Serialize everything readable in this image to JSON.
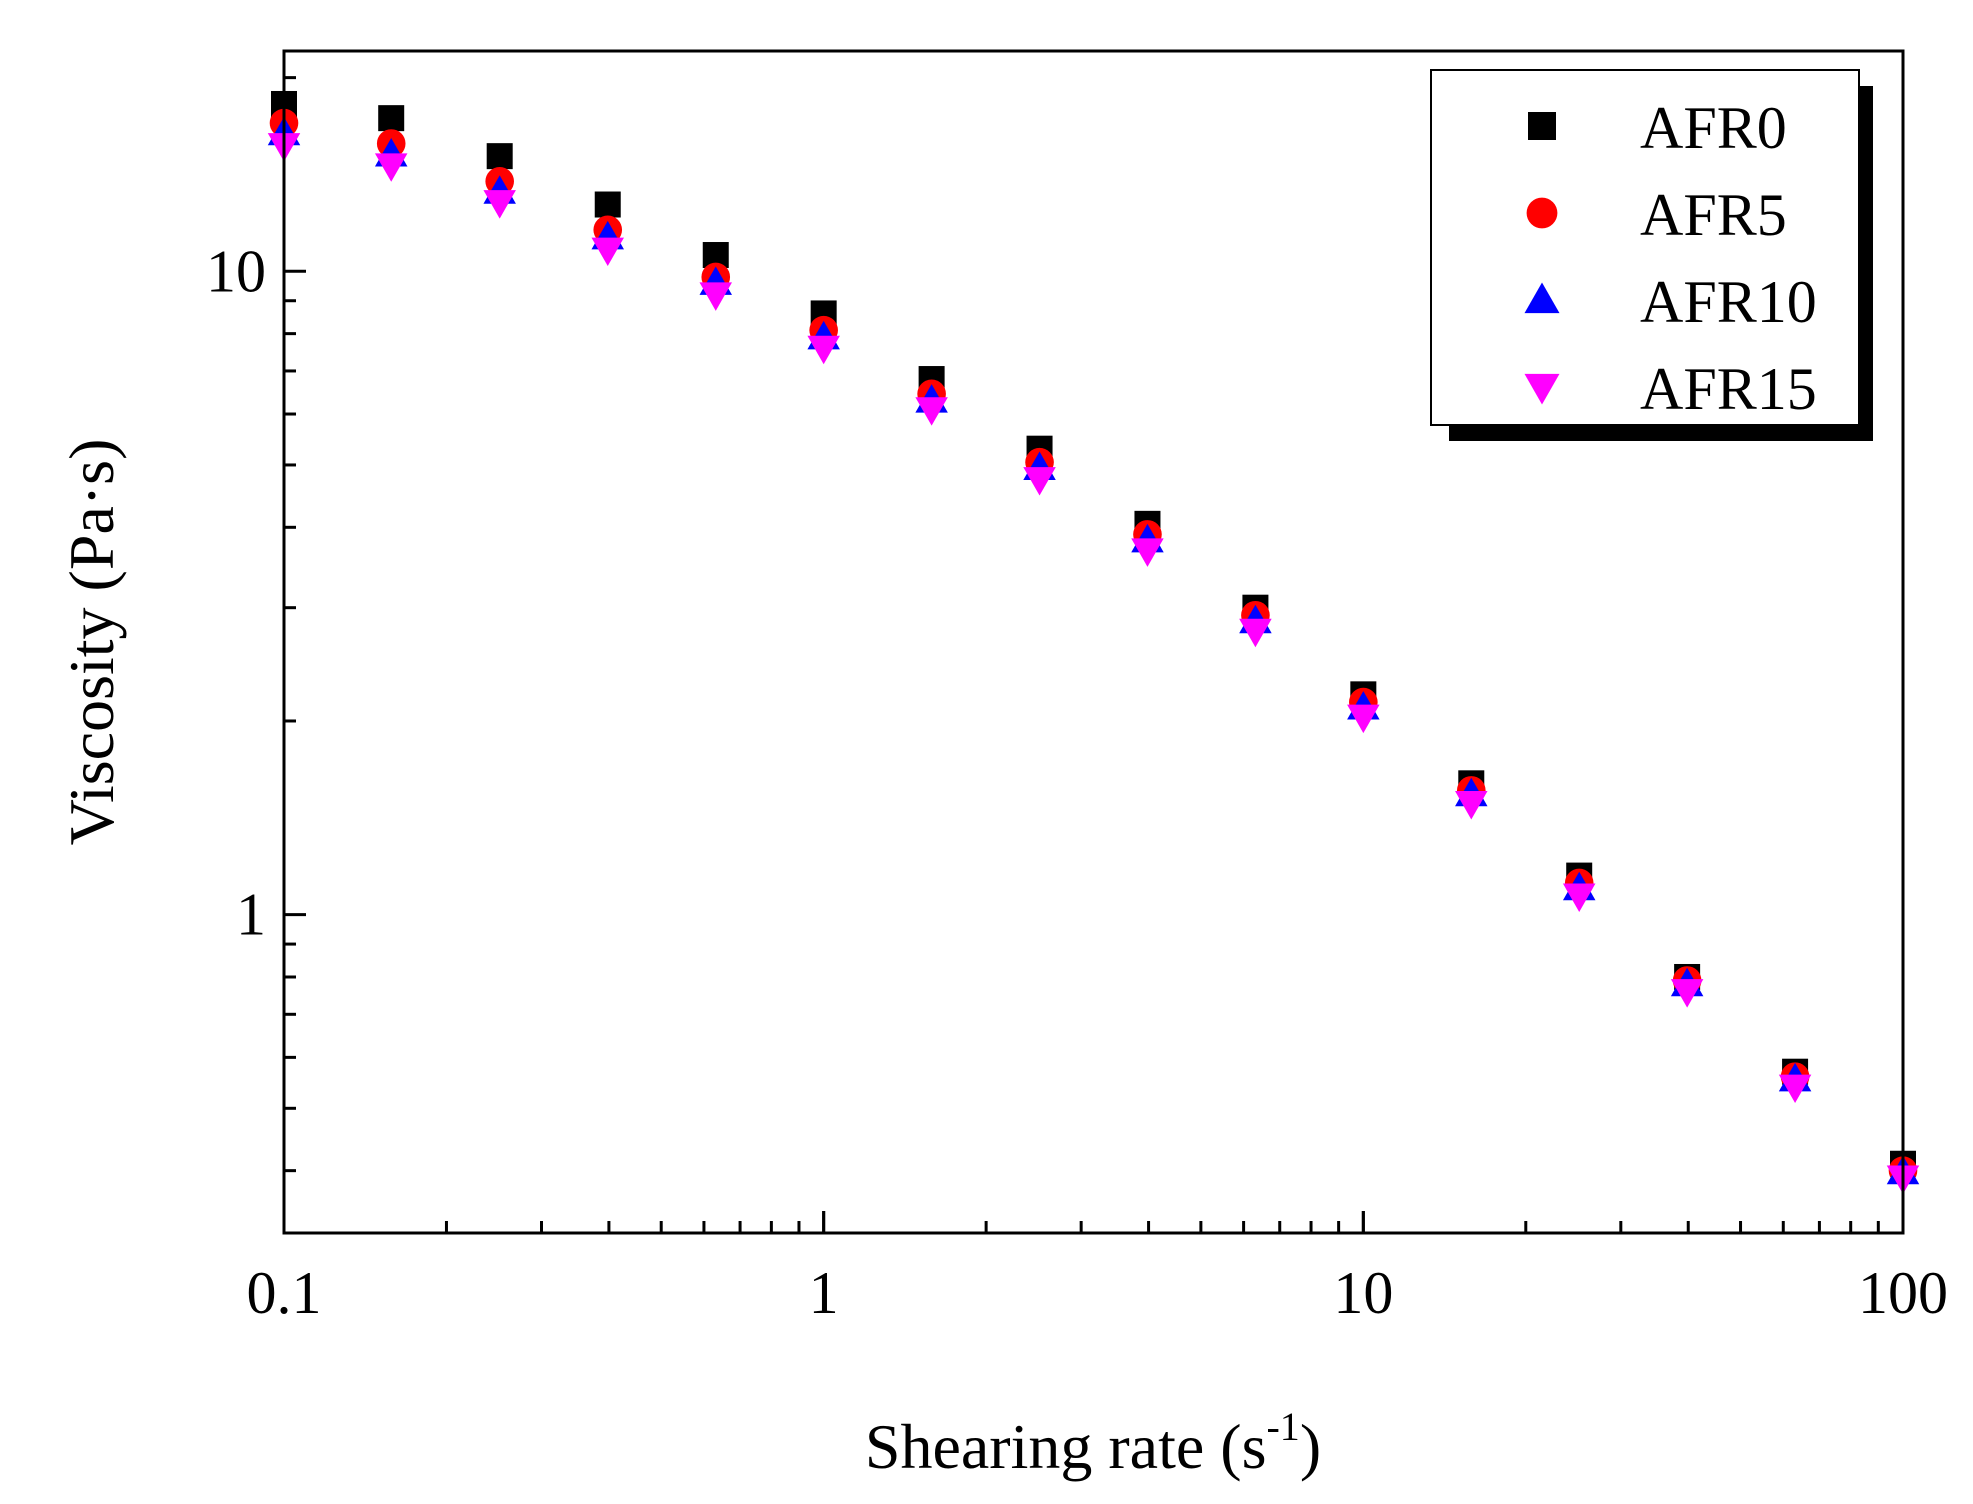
{
  "chart_data": {
    "type": "scatter",
    "xscale": "log",
    "yscale": "log",
    "xlim": [
      0.1,
      100
    ],
    "ylim": [
      0.32,
      22
    ],
    "xlabel": "Shearing rate (s",
    "xlabel_sup": "-1",
    "xlabel_close": ")",
    "ylabel": "Viscosity (Pa·s)",
    "xticks": [
      {
        "value": 0.1,
        "label": "0.1"
      },
      {
        "value": 1,
        "label": "1"
      },
      {
        "value": 10,
        "label": "10"
      },
      {
        "value": 100,
        "label": "100"
      }
    ],
    "yticks": [
      {
        "value": 1,
        "label": "1"
      },
      {
        "value": 10,
        "label": "10"
      }
    ],
    "legend_position": "top-right",
    "x": [
      0.1,
      0.158,
      0.251,
      0.398,
      0.631,
      1,
      1.585,
      2.512,
      3.981,
      6.31,
      10,
      15.85,
      25.12,
      39.81,
      63.1,
      100
    ],
    "series": [
      {
        "name": "AFR0",
        "marker": "square",
        "color": "#000000",
        "values": [
          18.2,
          17.3,
          15.1,
          12.7,
          10.6,
          8.6,
          6.8,
          5.3,
          4.05,
          3.0,
          2.2,
          1.6,
          1.15,
          0.8,
          0.57,
          0.41
        ]
      },
      {
        "name": "AFR5",
        "marker": "circle",
        "color": "#ff0000",
        "values": [
          17.0,
          15.8,
          13.8,
          11.6,
          9.8,
          8.1,
          6.45,
          5.05,
          3.9,
          2.92,
          2.14,
          1.56,
          1.12,
          0.79,
          0.56,
          0.4
        ]
      },
      {
        "name": "AFR10",
        "marker": "triangle-up",
        "color": "#0000ff",
        "values": [
          16.4,
          15.2,
          13.3,
          11.3,
          9.6,
          7.9,
          6.3,
          4.95,
          3.82,
          2.86,
          2.1,
          1.54,
          1.1,
          0.78,
          0.555,
          0.398
        ]
      },
      {
        "name": "AFR15",
        "marker": "triangle-down",
        "color": "#ff00ff",
        "values": [
          15.7,
          14.6,
          12.8,
          10.8,
          9.2,
          7.6,
          6.1,
          4.75,
          3.68,
          2.76,
          2.03,
          1.49,
          1.07,
          0.76,
          0.54,
          0.39
        ]
      }
    ]
  }
}
